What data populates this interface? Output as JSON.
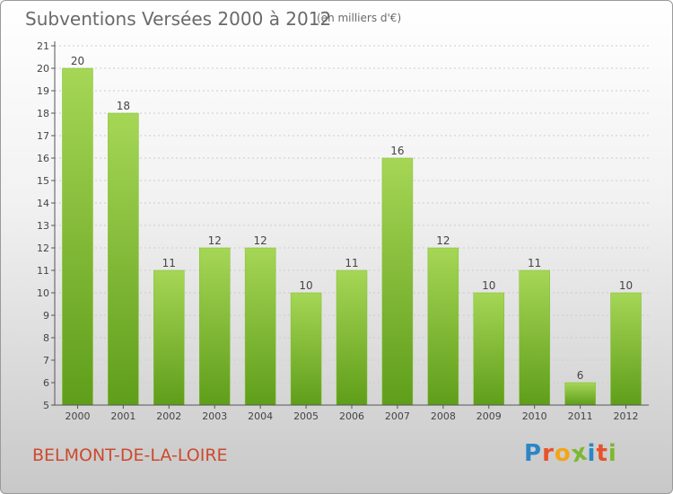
{
  "header": {
    "title": "Subventions Versées 2000 à 2012",
    "unit": "(en milliers d'€)"
  },
  "footer": {
    "commune": "BELMONT-DE-LA-LOIRE",
    "logo": {
      "letters": [
        "P",
        "r",
        "o",
        "x",
        "i",
        "t",
        "i"
      ],
      "colors": [
        "#2b86c6",
        "#e8522a",
        "#f2a516",
        "#7cb830",
        "#2b86c6",
        "#e8522a",
        "#7cb830"
      ]
    }
  },
  "colors": {
    "bar_light": "#a6d656",
    "bar_dark": "#5f9e1a",
    "axis": "#555555",
    "grid": "#cccccc",
    "text": "#444444"
  },
  "chart_data": {
    "type": "bar",
    "categories": [
      "2000",
      "2001",
      "2002",
      "2003",
      "2004",
      "2005",
      "2006",
      "2007",
      "2008",
      "2009",
      "2010",
      "2011",
      "2012"
    ],
    "values": [
      20,
      18,
      11,
      12,
      12,
      10,
      11,
      16,
      12,
      10,
      11,
      6,
      10
    ],
    "data_labels": [
      "20",
      "18",
      "11",
      "12",
      "12",
      "10",
      "11",
      "16",
      "12",
      "10",
      "11",
      "6",
      "10"
    ],
    "ylim": [
      5,
      21
    ],
    "yticks": [
      "5",
      "6",
      "7",
      "8",
      "9",
      "10",
      "11",
      "12",
      "13",
      "14",
      "15",
      "16",
      "17",
      "18",
      "19",
      "20",
      "21"
    ],
    "grid": true,
    "legend": "none"
  }
}
